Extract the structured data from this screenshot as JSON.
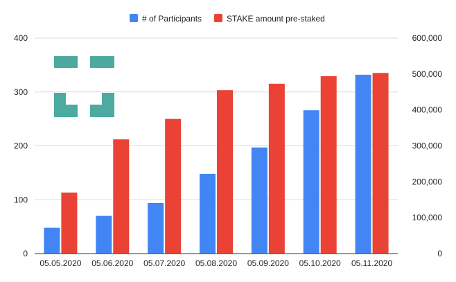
{
  "chart_data": {
    "type": "bar",
    "categories": [
      "05.05.2020",
      "05.06.2020",
      "05.07.2020",
      "05.08.2020",
      "05.09.2020",
      "05.10.2020",
      "05.11.2020"
    ],
    "series": [
      {
        "name": "# of Participants",
        "axis": "left",
        "color": "#4285f4",
        "values": [
          48,
          70,
          94,
          148,
          197,
          266,
          332
        ]
      },
      {
        "name": "STAKE amount pre-staked",
        "axis": "right",
        "color": "#ea4335",
        "values": [
          170000,
          318000,
          375000,
          455000,
          473000,
          494000,
          503000
        ]
      }
    ],
    "y_left": {
      "range": [
        0,
        400
      ],
      "ticks": [
        0,
        100,
        200,
        300,
        400
      ],
      "tick_labels": [
        "0",
        "100",
        "200",
        "300",
        "400"
      ]
    },
    "y_right": {
      "range": [
        0,
        600000
      ],
      "ticks": [
        0,
        100000,
        200000,
        300000,
        400000,
        500000,
        600000
      ],
      "tick_labels": [
        "0",
        "100,000",
        "200,000",
        "300,000",
        "400,000",
        "500,000",
        "600,000"
      ]
    },
    "legend_position": "top-center",
    "grid": true,
    "watermark_logo_color": "#4caaa0"
  }
}
